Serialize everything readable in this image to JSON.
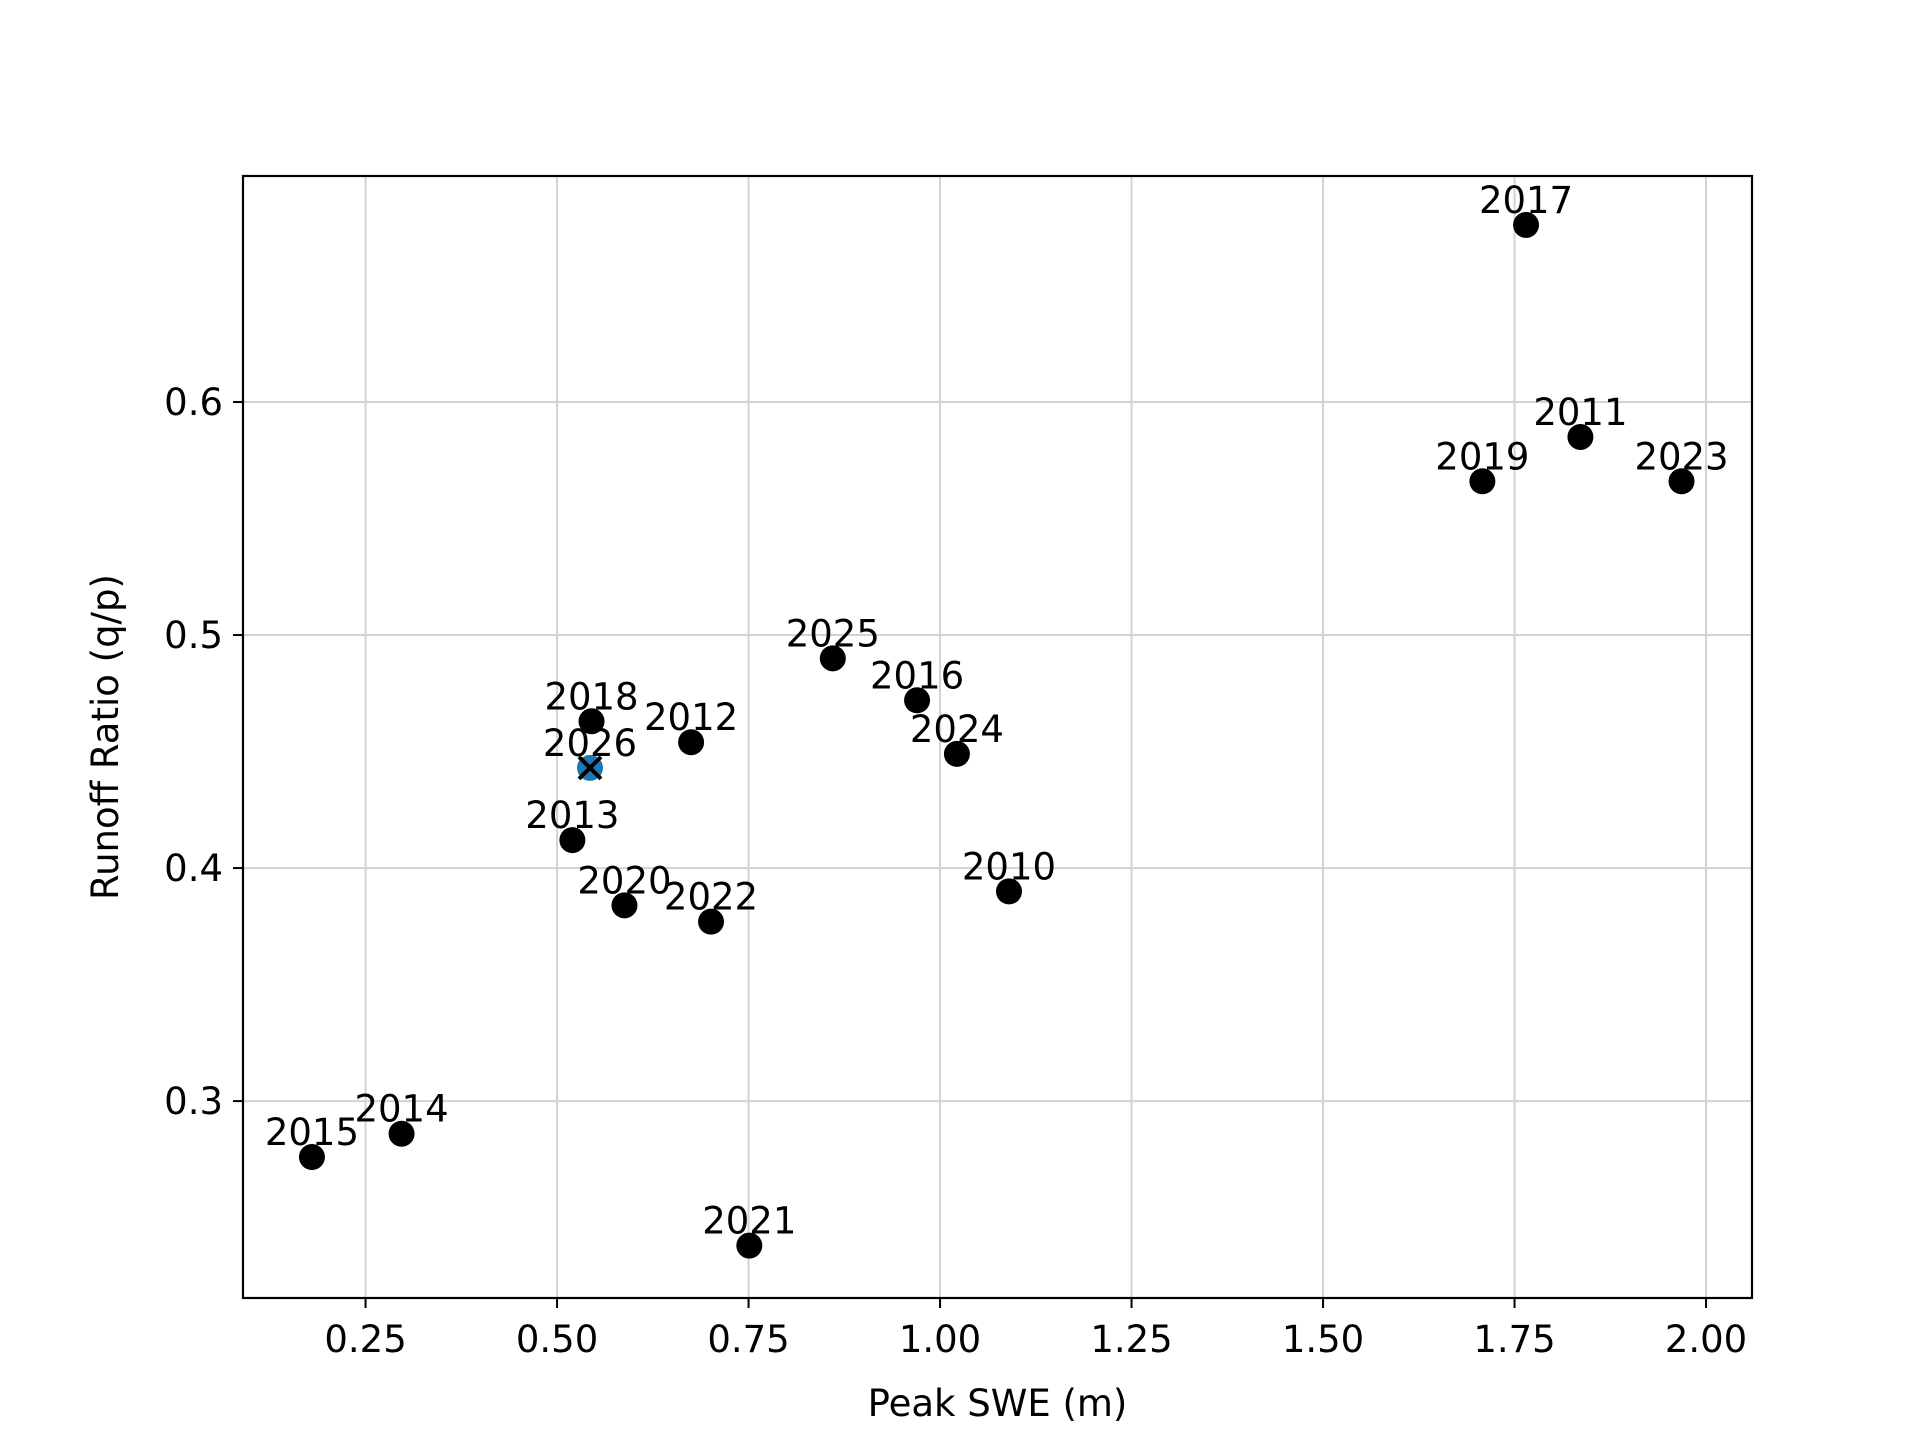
{
  "chart_data": {
    "type": "scatter",
    "title": "",
    "xlabel": "Peak SWE (m)",
    "ylabel": "Runoff Ratio (q/p)",
    "xlim": [
      0.09,
      2.06
    ],
    "ylim": [
      0.2155,
      0.697
    ],
    "xticks": [
      0.25,
      0.5,
      0.75,
      1.0,
      1.25,
      1.5,
      1.75,
      2.0
    ],
    "xtick_labels": [
      "0.25",
      "0.50",
      "0.75",
      "1.00",
      "1.25",
      "1.50",
      "1.75",
      "2.00"
    ],
    "yticks": [
      0.3,
      0.4,
      0.5,
      0.6
    ],
    "ytick_labels": [
      "0.3",
      "0.4",
      "0.5",
      "0.6"
    ],
    "grid": true,
    "colors": {
      "points": "#000000",
      "highlight": "#1f77b4",
      "grid": "#d3d3d3"
    },
    "points": [
      {
        "label": "2010",
        "x": 1.09,
        "y": 0.39
      },
      {
        "label": "2011",
        "x": 1.836,
        "y": 0.585
      },
      {
        "label": "2012",
        "x": 0.675,
        "y": 0.454
      },
      {
        "label": "2013",
        "x": 0.52,
        "y": 0.412
      },
      {
        "label": "2014",
        "x": 0.297,
        "y": 0.286
      },
      {
        "label": "2015",
        "x": 0.18,
        "y": 0.276
      },
      {
        "label": "2016",
        "x": 0.97,
        "y": 0.472
      },
      {
        "label": "2017",
        "x": 1.765,
        "y": 0.676
      },
      {
        "label": "2018",
        "x": 0.545,
        "y": 0.463
      },
      {
        "label": "2019",
        "x": 1.708,
        "y": 0.566
      },
      {
        "label": "2020",
        "x": 0.588,
        "y": 0.384
      },
      {
        "label": "2021",
        "x": 0.751,
        "y": 0.238
      },
      {
        "label": "2022",
        "x": 0.701,
        "y": 0.377
      },
      {
        "label": "2023",
        "x": 1.968,
        "y": 0.566
      },
      {
        "label": "2024",
        "x": 1.022,
        "y": 0.449
      },
      {
        "label": "2025",
        "x": 0.86,
        "y": 0.49
      }
    ],
    "highlight_point": {
      "label": "2026",
      "x": 0.543,
      "y": 0.443,
      "marker": "x"
    }
  }
}
